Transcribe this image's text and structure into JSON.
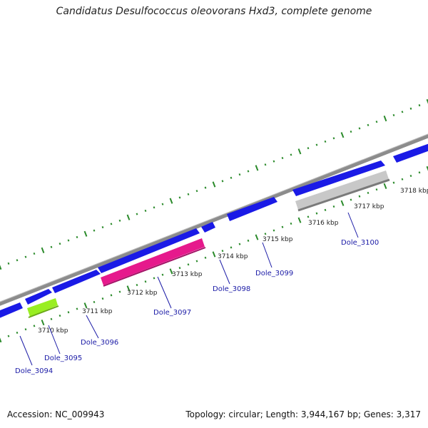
{
  "title": "Candidatus Desulfococcus oleovorans Hxd3, complete genome",
  "footer": {
    "accession": "Accession: NC_009943",
    "stats": "Topology: circular; Length: 3,944,167 bp; Genes: 3,317"
  },
  "colors": {
    "backbone": "#8c8c8c",
    "forward_gene": "#1a1ae6",
    "tick_green": "#2a8a2a",
    "label_blue": "#1a1aa6",
    "magenta_gene": "#e6198c",
    "lime_gene": "#99ee22",
    "grey_gene": "#c8c8c8"
  },
  "kbp_labels": [
    "3710 kbp",
    "3711 kbp",
    "3712 kbp",
    "3713 kbp",
    "3714 kbp",
    "3715 kbp",
    "3716 kbp",
    "3717 kbp",
    "3718 kbp"
  ],
  "gene_labels": [
    "Dole_3094",
    "Dole_3095",
    "Dole_3096",
    "Dole_3097",
    "Dole_3098",
    "Dole_3099",
    "Dole_3100"
  ]
}
